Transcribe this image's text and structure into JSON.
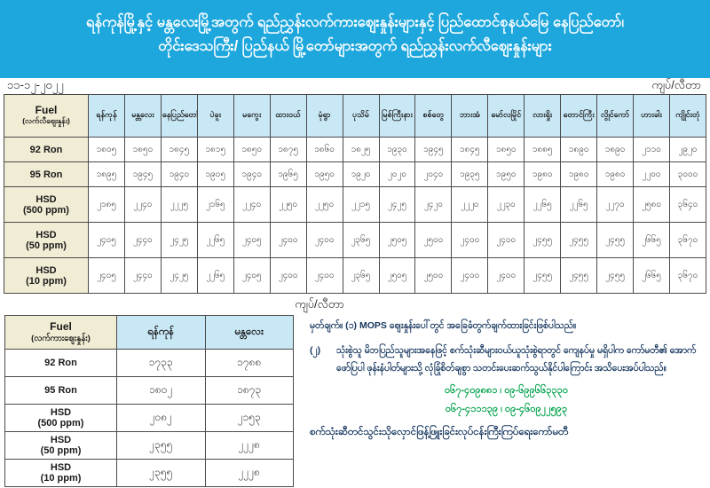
{
  "banner": {
    "line1": "ရန်ကုန်မြို့နှင့် မန္တလေးမြို့အတွက် ရည်ညွှန်းလက်ကားဈေးနှုန်းများနှင့် ပြည်ထောင်စုနယ်မြေ နေပြည်တော်၊",
    "line2": "တိုင်းဒေသကြီး/ ပြည်နယ် မြို့တော်များအတွက် ရည်ညွှန်းလက်လီဈေးနှုန်းများ"
  },
  "meta": {
    "date": "၁၁-၁၂-၂၀၂၂",
    "unit": "ကျပ်/လီတာ"
  },
  "retail_table": {
    "fuel_header": "Fuel",
    "fuel_subheader": "(လက်လီဈေးနှုန်း)",
    "cities": [
      "ရန်ကုန်",
      "မန္တလေး",
      "နေပြည်တော်",
      "ပဲခူး",
      "မကွေး",
      "ထားဝယ်",
      "မုံရွာ",
      "ပုသိမ်",
      "မြစ်ကြီးနား",
      "စစ်တွေ",
      "ဘားအံ",
      "မော်လမြိုင်",
      "လားရှိုး",
      "တောင်ကြီး",
      "လွိုင်ကော်",
      "ဟားခါး",
      "ကျိုင်းတုံ"
    ],
    "rows": [
      {
        "fuel": "92 Ron",
        "fuel2": "",
        "values": [
          "၁၈၀၅",
          "၁၈၅၀",
          "၁၈၄၅",
          "၁၈၁၅",
          "၁၈၅၀",
          "၁၈၇၅",
          "၁၈၆၀",
          "၁၈၂၅",
          "၁၉၃၀",
          "၁၉၄၅",
          "၁၈၄၅",
          "၁၈၅၀",
          "၁၈၈၅",
          "၁၈၉၀",
          "၁၈၉၀",
          "၂၁၁၀",
          "၂၉၂၀"
        ]
      },
      {
        "fuel": "95 Ron",
        "fuel2": "",
        "values": [
          "၁၈၉၅",
          "၁၉၄၅",
          "၁၉၄၀",
          "၁၉၀၅",
          "၁၉၄၀",
          "၁၉၆၅",
          "၁၉၅၀",
          "၁၉၂၀",
          "၂၀၂၀",
          "၂၀၄၀",
          "၁၉၃၅",
          "၁၉၅၀",
          "၁၉၈၀",
          "၁၉၈၀",
          "၁၉၈၀",
          "၂၂၀၀",
          "၃၀၀၀"
        ]
      },
      {
        "fuel": "HSD",
        "fuel2": "(500 ppm)",
        "values": [
          "၂၁၈၅",
          "၂၂၄၀",
          "၂၂၂၅",
          "၂၁၆၅",
          "၂၂၄၀",
          "၂၂၅၀",
          "၂၂၅၀",
          "၂၂၁၅",
          "၂၄၂၅",
          "၂၄၂၀",
          "၂၂၂၀",
          "၂၂၃၀",
          "၂၂၆၅",
          "၂၂၆၅",
          "၂၂၇၀",
          "၂၅၈၀",
          "၃၆၄၀"
        ]
      },
      {
        "fuel": "HSD",
        "fuel2": "(50 ppm)",
        "values": [
          "၂၄၀၅",
          "၂၄၄၀",
          "၂၄၂၅",
          "၂၂၆၅",
          "၂၄၀၅",
          "၂၄၀၀",
          "၂၄၀၀",
          "၂၃၆၅",
          "၂၅၀၅",
          "၂၅၀၀",
          "၂၄၀၀",
          "၂၄၀၀",
          "၂၄၅၅",
          "၂၄၅၅",
          "၂၄၅၅",
          "၂၆၆၅",
          "၃၆၇၀"
        ]
      },
      {
        "fuel": "HSD",
        "fuel2": "(10 ppm)",
        "values": [
          "၂၄၀၅",
          "၂၄၄၀",
          "၂၄၂၅",
          "၂၂၆၅",
          "၂၄၀၅",
          "၂၄၀၀",
          "၂၄၀၀",
          "၂၃၆၅",
          "၂၅၀၅",
          "၂၅၀၀",
          "၂၄၀၀",
          "၂၄၀၀",
          "၂၄၅၅",
          "၂၄၅၅",
          "၂၄၅၅",
          "၂၆၆၅",
          "၃၆၇၀"
        ]
      }
    ]
  },
  "mid_unit": "ကျပ်/လီတာ",
  "wholesale_table": {
    "fuel_header": "Fuel",
    "fuel_subheader": "(လက်ကားဈေးနှုန်း)",
    "cities": [
      "ရန်ကုန်",
      "မန္တလေး"
    ],
    "rows": [
      {
        "fuel": "92 Ron",
        "fuel2": "",
        "values": [
          "၁၇၃၃",
          "၁၇၈၈"
        ]
      },
      {
        "fuel": "95 Ron",
        "fuel2": "",
        "values": [
          "၁၈၀၂",
          "၁၈၇၃"
        ]
      },
      {
        "fuel": "HSD",
        "fuel2": "(500 ppm)",
        "values": [
          "၂၀၈၂",
          "၂၁၅၃"
        ]
      },
      {
        "fuel": "HSD",
        "fuel2": "(50 ppm)",
        "values": [
          "၂၃၅၅",
          "၂၂၂၈"
        ]
      },
      {
        "fuel": "HSD",
        "fuel2": "(10 ppm)",
        "values": [
          "၂၃၅၅",
          "၂၂၂၈"
        ]
      }
    ]
  },
  "notes": {
    "note1": "မှတ်ချက်။ (၁) MOPS ဈေးနှုန်းပေါ်တွင် အခြေခံတွက်ချက်ထားခြင်းဖြစ်ပါသည်။",
    "note2_num": "(၂)",
    "note2": "သုံးစွဲသူ မိဘပြည်သူများအနေဖြင့် စက်သုံးဆီများဝယ်ယူသုံးစွဲရာတွင် ကျေနပ်မှု မရှိပါက ကော်မတီ၏ အောက်ဖော်ပြပါ ဖုန်းနံပါတ်များသို့ လုံခြုံစိတ်ချစွာ သတင်းပေးဆက်သွယ်နိုင်ပါကြောင်း အသိပေးအပ်ပါသည်။",
    "phone1": "၀၆၇-၄၀၉၈၈၁ ၊ ၀၉-၆၉၉၆၆၃၃၃၀",
    "phone2": "၀၆၇-၄၁၁၁၃၉ ၊ ၀၉-၄၆၀၉၂၂၅၉၃",
    "committee": "စက်သုံးဆီတင်သွင်းသိုလှောင်ဖြန့်ဖြူးခြင်းလုပ်ငန်းကြီးကြပ်ရေးကော်မတီ"
  },
  "colors": {
    "banner_bg": "#1ea7dd",
    "header_bg": "#c9e8f6",
    "fuel_col_bg": "#f1ecd4",
    "note_text": "#17375e",
    "phone_text": "#00a14b"
  }
}
